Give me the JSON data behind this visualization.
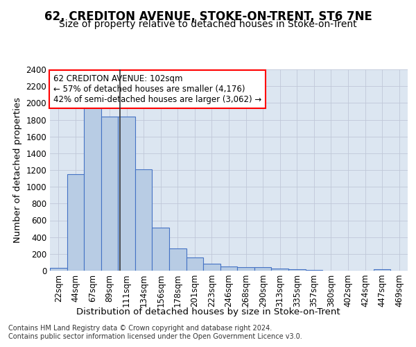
{
  "title": "62, CREDITON AVENUE, STOKE-ON-TRENT, ST6 7NE",
  "subtitle": "Size of property relative to detached houses in Stoke-on-Trent",
  "xlabel": "Distribution of detached houses by size in Stoke-on-Trent",
  "ylabel": "Number of detached properties",
  "footer_line1": "Contains HM Land Registry data © Crown copyright and database right 2024.",
  "footer_line2": "Contains public sector information licensed under the Open Government Licence v3.0.",
  "categories": [
    "22sqm",
    "44sqm",
    "67sqm",
    "89sqm",
    "111sqm",
    "134sqm",
    "156sqm",
    "178sqm",
    "201sqm",
    "223sqm",
    "246sqm",
    "268sqm",
    "290sqm",
    "313sqm",
    "335sqm",
    "357sqm",
    "380sqm",
    "402sqm",
    "424sqm",
    "447sqm",
    "469sqm"
  ],
  "values": [
    30,
    1150,
    1950,
    1840,
    1840,
    1210,
    510,
    265,
    155,
    80,
    50,
    45,
    40,
    25,
    15,
    10,
    0,
    0,
    0,
    15,
    0
  ],
  "bar_color": "#b8cce4",
  "bar_edge_color": "#4472c4",
  "background_color": "#dce6f1",
  "grid_color": "#c0c8d8",
  "ylim": [
    0,
    2400
  ],
  "yticks": [
    0,
    200,
    400,
    600,
    800,
    1000,
    1200,
    1400,
    1600,
    1800,
    2000,
    2200,
    2400
  ],
  "annotation_text_line1": "62 CREDITON AVENUE: 102sqm",
  "annotation_text_line2": "← 57% of detached houses are smaller (4,176)",
  "annotation_text_line3": "42% of semi-detached houses are larger (3,062) →",
  "title_fontsize": 12,
  "subtitle_fontsize": 10,
  "annotation_fontsize": 8.5,
  "axis_label_fontsize": 9.5,
  "tick_fontsize": 8.5
}
